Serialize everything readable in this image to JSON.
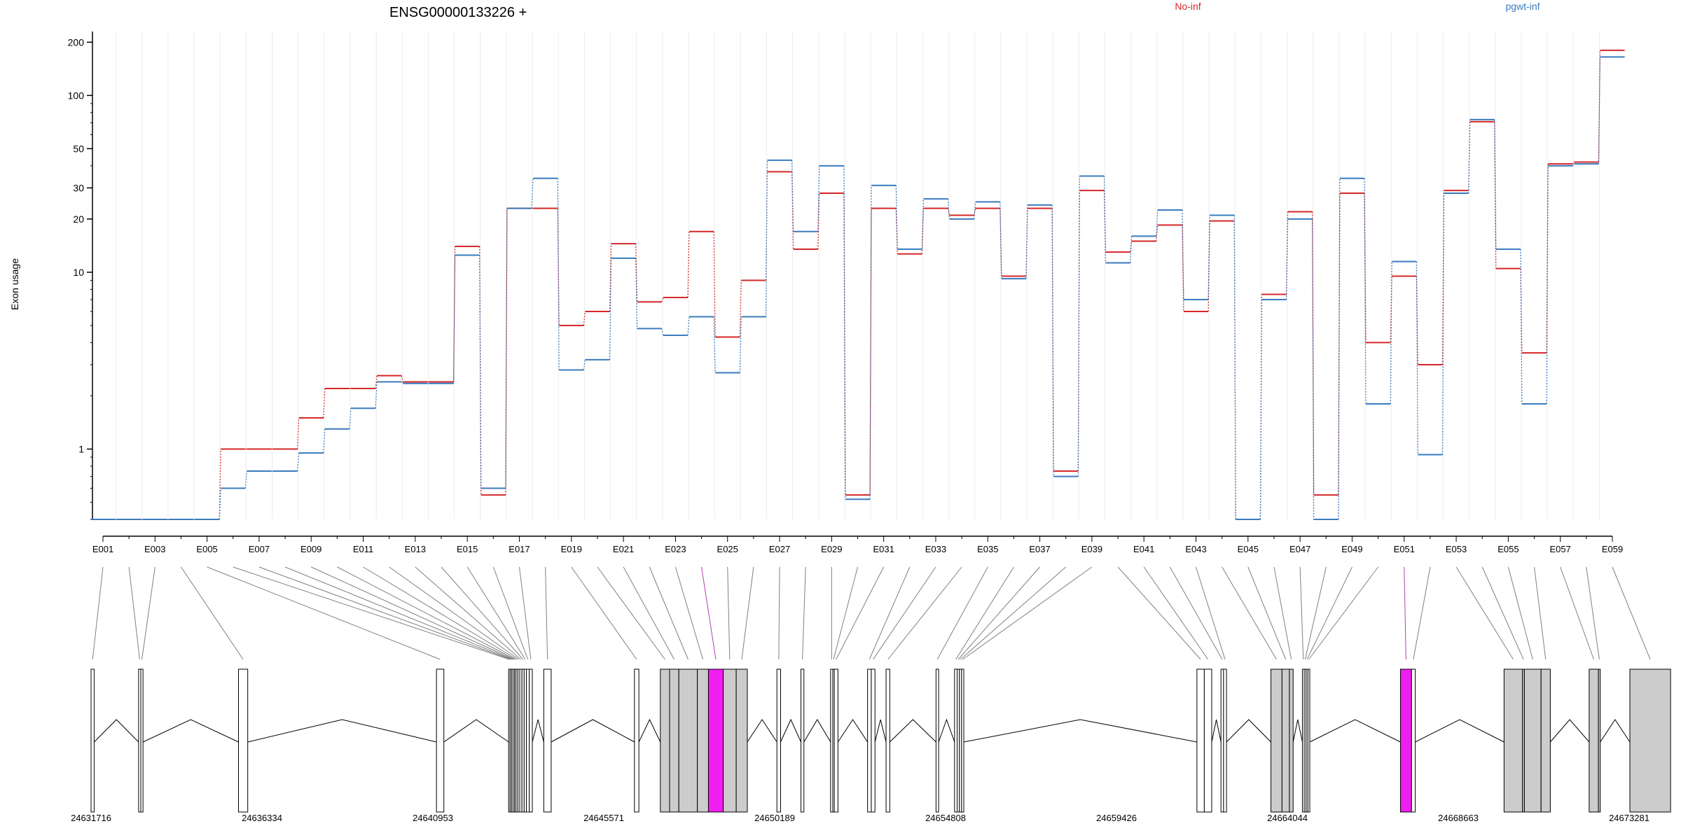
{
  "chart_data": {
    "type": "line",
    "title": "ENSG00000133226 +",
    "ylabel": "Exon usage",
    "yscale": "log",
    "ylim": [
      0.4,
      230
    ],
    "yticks": [
      1,
      10,
      20,
      30,
      50,
      100,
      200
    ],
    "grid": false,
    "legend_placement": "top",
    "categories": [
      "E001",
      "E002",
      "E003",
      "E004",
      "E005",
      "E006",
      "E007",
      "E008",
      "E009",
      "E010",
      "E011",
      "E012",
      "E013",
      "E014",
      "E015",
      "E016",
      "E017",
      "E018",
      "E019",
      "E020",
      "E021",
      "E022",
      "E023",
      "E024",
      "E025",
      "E026",
      "E027",
      "E028",
      "E029",
      "E030",
      "E031",
      "E032",
      "E033",
      "E034",
      "E035",
      "E036",
      "E037",
      "E038",
      "E039",
      "E040",
      "E041",
      "E042",
      "E043",
      "E044",
      "E045",
      "E046",
      "E047",
      "E048",
      "E049",
      "E050",
      "E051",
      "E052",
      "E053",
      "E054",
      "E055",
      "E056",
      "E057",
      "E058",
      "E059"
    ],
    "xtick_labels": [
      "E001",
      "E003",
      "E005",
      "E007",
      "E009",
      "E011",
      "E013",
      "E015",
      "E017",
      "E019",
      "E021",
      "E023",
      "E025",
      "E027",
      "E029",
      "E031",
      "E033",
      "E035",
      "E037",
      "E039",
      "E041",
      "E043",
      "E045",
      "E047",
      "E049",
      "E051",
      "E053",
      "E055",
      "E057",
      "E059"
    ],
    "series": [
      {
        "name": "No-inf",
        "color": "#d62728",
        "style": "solid",
        "values": [
          0.4,
          0.4,
          0.4,
          0.4,
          0.4,
          1.0,
          1.0,
          1.0,
          1.5,
          2.2,
          2.2,
          2.6,
          2.4,
          2.4,
          14,
          0.55,
          23,
          23,
          5.0,
          6.0,
          14.5,
          6.8,
          7.2,
          17,
          4.3,
          9.0,
          37,
          13.5,
          28,
          0.55,
          23,
          12.7,
          23,
          21,
          23,
          9.5,
          23,
          0.75,
          29,
          13,
          15,
          18.5,
          6.0,
          19.5,
          0.4,
          7.5,
          22,
          0.55,
          28,
          4.0,
          9.5,
          3.0,
          29,
          71,
          10.5,
          3.5,
          41,
          42,
          180
        ]
      },
      {
        "name": "pgwt-inf",
        "color": "#3a7bbf",
        "style": "dashed",
        "values": [
          0.4,
          0.4,
          0.4,
          0.4,
          0.4,
          0.6,
          0.75,
          0.75,
          0.95,
          1.3,
          1.7,
          2.4,
          2.35,
          2.35,
          12.5,
          0.6,
          23,
          34,
          2.8,
          3.2,
          12,
          4.8,
          4.4,
          5.6,
          2.7,
          5.6,
          43,
          17,
          40,
          0.52,
          31,
          13.5,
          26,
          20,
          25,
          9.2,
          24,
          0.7,
          35,
          11.3,
          16,
          22.5,
          7.0,
          21,
          0.4,
          7.0,
          20,
          0.4,
          34,
          1.8,
          11.5,
          0.93,
          28,
          73,
          13.5,
          1.8,
          40,
          41,
          165
        ]
      }
    ]
  },
  "gene_model": {
    "coordinate_labels": [
      "24631716",
      "24636334",
      "24640953",
      "24645571",
      "24650189",
      "24654808",
      "24659426",
      "24664044",
      "24668663",
      "24673281"
    ],
    "coord_start": 24631716,
    "coord_end": 24673281,
    "colors": {
      "plain": "#ffffff",
      "tested": "#cccccc",
      "significant": "#f01ef0",
      "line": "#808080",
      "highlight_line": "#b040b0"
    },
    "exons": [
      {
        "id": "E001",
        "start": 24631716,
        "end": 24631800,
        "fill": "plain"
      },
      {
        "id": "E002",
        "start": 24633000,
        "end": 24633060,
        "fill": "plain"
      },
      {
        "id": "E003",
        "start": 24633060,
        "end": 24633120,
        "fill": "plain"
      },
      {
        "id": "E004",
        "start": 24635700,
        "end": 24635950,
        "fill": "plain"
      },
      {
        "id": "E005",
        "start": 24641050,
        "end": 24641250,
        "fill": "plain"
      },
      {
        "id": "E006",
        "start": 24643000,
        "end": 24643040,
        "fill": "plain"
      },
      {
        "id": "E007",
        "start": 24643040,
        "end": 24643080,
        "fill": "plain"
      },
      {
        "id": "E008",
        "start": 24643080,
        "end": 24643120,
        "fill": "plain"
      },
      {
        "id": "E009",
        "start": 24643120,
        "end": 24643160,
        "fill": "plain"
      },
      {
        "id": "E010",
        "start": 24643160,
        "end": 24643200,
        "fill": "plain"
      },
      {
        "id": "E011",
        "start": 24643200,
        "end": 24643250,
        "fill": "plain"
      },
      {
        "id": "E012",
        "start": 24643250,
        "end": 24643300,
        "fill": "plain"
      },
      {
        "id": "E013",
        "start": 24643300,
        "end": 24643360,
        "fill": "plain"
      },
      {
        "id": "E014",
        "start": 24643360,
        "end": 24643420,
        "fill": "plain"
      },
      {
        "id": "E015",
        "start": 24643420,
        "end": 24643480,
        "fill": "plain"
      },
      {
        "id": "E016",
        "start": 24643480,
        "end": 24643560,
        "fill": "plain"
      },
      {
        "id": "E017",
        "start": 24643560,
        "end": 24643640,
        "fill": "plain"
      },
      {
        "id": "E018",
        "start": 24643950,
        "end": 24644150,
        "fill": "plain"
      },
      {
        "id": "E019",
        "start": 24646400,
        "end": 24646520,
        "fill": "plain"
      },
      {
        "id": "E020",
        "start": 24647100,
        "end": 24647350,
        "fill": "tested"
      },
      {
        "id": "E021",
        "start": 24647350,
        "end": 24647600,
        "fill": "tested"
      },
      {
        "id": "E022",
        "start": 24647600,
        "end": 24648100,
        "fill": "tested"
      },
      {
        "id": "E023",
        "start": 24648100,
        "end": 24648400,
        "fill": "tested"
      },
      {
        "id": "E024",
        "start": 24648400,
        "end": 24648800,
        "fill": "significant"
      },
      {
        "id": "E025",
        "start": 24648800,
        "end": 24649150,
        "fill": "tested"
      },
      {
        "id": "E026",
        "start": 24649150,
        "end": 24649450,
        "fill": "tested"
      },
      {
        "id": "E027",
        "start": 24650250,
        "end": 24650350,
        "fill": "plain"
      },
      {
        "id": "E028",
        "start": 24650900,
        "end": 24650980,
        "fill": "plain"
      },
      {
        "id": "E029",
        "start": 24651700,
        "end": 24651760,
        "fill": "plain"
      },
      {
        "id": "E030",
        "start": 24651760,
        "end": 24651800,
        "fill": "plain"
      },
      {
        "id": "E031",
        "start": 24651800,
        "end": 24651900,
        "fill": "plain"
      },
      {
        "id": "E032",
        "start": 24652700,
        "end": 24652800,
        "fill": "plain"
      },
      {
        "id": "E033",
        "start": 24652800,
        "end": 24652900,
        "fill": "plain"
      },
      {
        "id": "E034",
        "start": 24653200,
        "end": 24653300,
        "fill": "plain"
      },
      {
        "id": "E035",
        "start": 24654550,
        "end": 24654620,
        "fill": "plain"
      },
      {
        "id": "E036",
        "start": 24655050,
        "end": 24655120,
        "fill": "plain"
      },
      {
        "id": "E037",
        "start": 24655120,
        "end": 24655180,
        "fill": "plain"
      },
      {
        "id": "E038",
        "start": 24655180,
        "end": 24655240,
        "fill": "plain"
      },
      {
        "id": "E039",
        "start": 24655240,
        "end": 24655300,
        "fill": "plain"
      },
      {
        "id": "E040",
        "start": 24661600,
        "end": 24661800,
        "fill": "plain"
      },
      {
        "id": "E041",
        "start": 24661800,
        "end": 24662000,
        "fill": "plain"
      },
      {
        "id": "E042",
        "start": 24662250,
        "end": 24662320,
        "fill": "plain"
      },
      {
        "id": "E043",
        "start": 24662320,
        "end": 24662400,
        "fill": "plain"
      },
      {
        "id": "E044",
        "start": 24663600,
        "end": 24663900,
        "fill": "tested"
      },
      {
        "id": "E045",
        "start": 24663900,
        "end": 24664100,
        "fill": "tested"
      },
      {
        "id": "E046",
        "start": 24664100,
        "end": 24664200,
        "fill": "tested"
      },
      {
        "id": "E047",
        "start": 24664450,
        "end": 24664500,
        "fill": "plain"
      },
      {
        "id": "E048",
        "start": 24664500,
        "end": 24664550,
        "fill": "plain"
      },
      {
        "id": "E049",
        "start": 24664550,
        "end": 24664600,
        "fill": "plain"
      },
      {
        "id": "E050",
        "start": 24664600,
        "end": 24664650,
        "fill": "plain"
      },
      {
        "id": "E051",
        "start": 24667100,
        "end": 24667400,
        "fill": "significant"
      },
      {
        "id": "E052",
        "start": 24667400,
        "end": 24667500,
        "fill": "plain"
      },
      {
        "id": "E053",
        "start": 24669900,
        "end": 24670400,
        "fill": "tested"
      },
      {
        "id": "E054",
        "start": 24670400,
        "end": 24670450,
        "fill": "tested"
      },
      {
        "id": "E055",
        "start": 24670450,
        "end": 24670900,
        "fill": "tested"
      },
      {
        "id": "E056",
        "start": 24670900,
        "end": 24671150,
        "fill": "tested"
      },
      {
        "id": "E057",
        "start": 24672200,
        "end": 24672450,
        "fill": "tested"
      },
      {
        "id": "E058",
        "start": 24672450,
        "end": 24672500,
        "fill": "tested"
      },
      {
        "id": "E059",
        "start": 24673300,
        "end": 24674400,
        "fill": "tested"
      }
    ]
  }
}
